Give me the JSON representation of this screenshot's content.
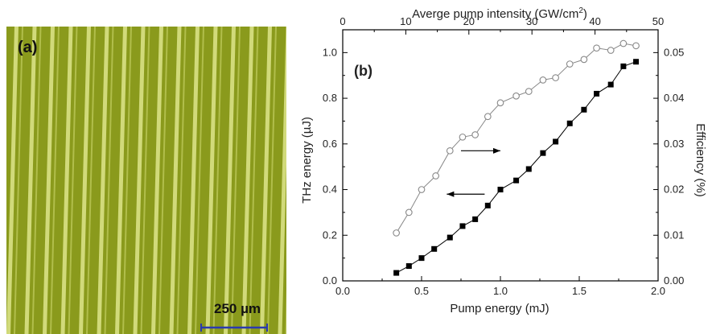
{
  "panel_a": {
    "label": "(a)",
    "scale_bar_label": "250 µm",
    "colors": {
      "background": "#8a9a1c",
      "stripe": "#e8ef9a",
      "text": "#111111",
      "scale_bar": "#2a3ab0"
    }
  },
  "chart_data": {
    "type": "scatter",
    "panel_label": "(b)",
    "xlabel": "Pump energy (mJ)",
    "ylabel": "THz energy (µJ)",
    "y2label": "Efficiency (%)",
    "x2label_main": "Averge pump intensity (GW/cm",
    "x2label_sup": "2",
    "x2label_end": ")",
    "xlim": [
      0.0,
      2.0
    ],
    "ylim": [
      0.0,
      1.1
    ],
    "y2lim": [
      0.0,
      0.055
    ],
    "x2lim": [
      0,
      50
    ],
    "xticks": [
      "0.0",
      "0.5",
      "1.0",
      "1.5",
      "2.0"
    ],
    "yticks": [
      "0.0",
      "0.2",
      "0.4",
      "0.6",
      "0.8",
      "1.0"
    ],
    "y2ticks": [
      "0.00",
      "0.01",
      "0.02",
      "0.03",
      "0.04",
      "0.05"
    ],
    "x2ticks": [
      "0",
      "10",
      "20",
      "30",
      "40",
      "50"
    ],
    "series": [
      {
        "axis": "left",
        "marker": "filled-square",
        "color": "#000000",
        "x": [
          0.34,
          0.42,
          0.5,
          0.58,
          0.68,
          0.76,
          0.84,
          0.92,
          1.0,
          1.1,
          1.18,
          1.27,
          1.35,
          1.44,
          1.53,
          1.61,
          1.7,
          1.78,
          1.86
        ],
        "y": [
          0.035,
          0.065,
          0.1,
          0.14,
          0.19,
          0.24,
          0.27,
          0.33,
          0.4,
          0.44,
          0.49,
          0.56,
          0.61,
          0.69,
          0.75,
          0.82,
          0.86,
          0.94,
          0.96
        ]
      },
      {
        "axis": "right",
        "marker": "open-circle",
        "color": "#888888",
        "x": [
          0.34,
          0.42,
          0.5,
          0.59,
          0.68,
          0.76,
          0.84,
          0.92,
          1.0,
          1.1,
          1.18,
          1.27,
          1.35,
          1.44,
          1.53,
          1.61,
          1.7,
          1.78,
          1.86
        ],
        "y": [
          0.0105,
          0.015,
          0.02,
          0.023,
          0.0285,
          0.0315,
          0.032,
          0.036,
          0.039,
          0.0405,
          0.0415,
          0.044,
          0.0445,
          0.0475,
          0.0485,
          0.051,
          0.0505,
          0.052,
          0.0515
        ]
      }
    ],
    "annotations": [
      {
        "type": "arrow",
        "direction": "right",
        "from": [
          0.75,
          0.57
        ],
        "to": [
          1.0,
          0.57
        ],
        "axis": "left"
      },
      {
        "type": "arrow",
        "direction": "left",
        "from": [
          0.9,
          0.38
        ],
        "to": [
          0.66,
          0.38
        ],
        "axis": "left"
      }
    ],
    "grid": false
  }
}
